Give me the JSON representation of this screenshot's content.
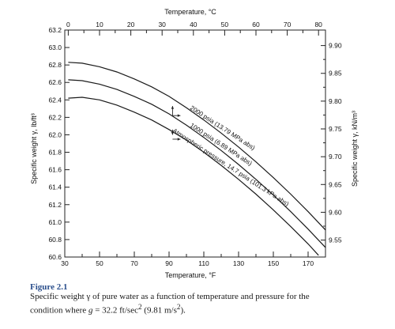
{
  "chart_data": {
    "type": "line",
    "title": "",
    "xlabel": "Temperature, °F",
    "xlabel_top": "Temperature, °C",
    "ylabel": "Specific weight γ, lb/ft³",
    "ylabel_right": "Specific weight γ, kN/m³",
    "xlim": [
      30,
      180
    ],
    "ylim": [
      60.6,
      63.2
    ],
    "x_ticks": [
      "30",
      "50",
      "70",
      "90",
      "110",
      "130",
      "150",
      "170"
    ],
    "x_tick_values": [
      30,
      50,
      70,
      90,
      110,
      130,
      150,
      170
    ],
    "top_ticks": [
      "0",
      "10",
      "20",
      "30",
      "40",
      "50",
      "60",
      "70",
      "80"
    ],
    "top_tick_values": [
      0,
      10,
      20,
      30,
      40,
      50,
      60,
      70,
      80
    ],
    "y_ticks": [
      "60.6",
      "60.8",
      "61.0",
      "61.2",
      "61.4",
      "61.6",
      "61.8",
      "62.0",
      "62.2",
      "62.4",
      "62.6",
      "62.8",
      "63.0",
      "63.2"
    ],
    "y_tick_values": [
      60.6,
      60.8,
      61.0,
      61.2,
      61.4,
      61.6,
      61.8,
      62.0,
      62.2,
      62.4,
      62.6,
      62.8,
      63.0,
      63.2
    ],
    "right_ticks": [
      "9.55",
      "9.60",
      "9.65",
      "9.70",
      "9.75",
      "9.80",
      "9.85",
      "9.90"
    ],
    "right_tick_values": [
      9.55,
      9.6,
      9.65,
      9.7,
      9.75,
      9.8,
      9.85,
      9.9
    ],
    "grid": false,
    "series": [
      {
        "name": "2000 psia (13.79 MPa abs)",
        "x": [
          32,
          40,
          50,
          60,
          70,
          80,
          90,
          100,
          110,
          120,
          130,
          140,
          150,
          160,
          170,
          180
        ],
        "y": [
          62.83,
          62.82,
          62.78,
          62.72,
          62.64,
          62.55,
          62.44,
          62.31,
          62.17,
          62.02,
          61.86,
          61.69,
          61.51,
          61.32,
          61.12,
          60.91
        ]
      },
      {
        "name": "1000 psia (6.89 MPa abs)",
        "x": [
          32,
          40,
          50,
          60,
          70,
          80,
          90,
          100,
          110,
          120,
          130,
          140,
          150,
          160,
          170,
          180
        ],
        "y": [
          62.63,
          62.62,
          62.58,
          62.52,
          62.44,
          62.35,
          62.24,
          62.11,
          61.97,
          61.82,
          61.66,
          61.49,
          61.31,
          61.12,
          60.92,
          60.71
        ]
      },
      {
        "name": "Atmospheric pressure, 14.7 psia (101.3 kPa abs)",
        "x": [
          32,
          40,
          50,
          60,
          70,
          80,
          90,
          100,
          110,
          120,
          130,
          140,
          150,
          160,
          170,
          176
        ],
        "y": [
          62.42,
          62.43,
          62.4,
          62.34,
          62.26,
          62.17,
          62.06,
          61.94,
          61.8,
          61.65,
          61.49,
          61.32,
          61.14,
          60.95,
          60.75,
          60.62
        ]
      }
    ]
  },
  "caption": {
    "title": "Figure 2.1",
    "text_line1": "Specific weight γ of pure water as a function of temperature and pressure for the",
    "text_line2_pre": "condition where ",
    "g_symbol": "g",
    "text_line2_eq": " = 32.2 ft/sec",
    "exp1": "2",
    "text_line2_mid": " (9.81 m/s",
    "exp2": "2",
    "text_line2_post": ")."
  }
}
